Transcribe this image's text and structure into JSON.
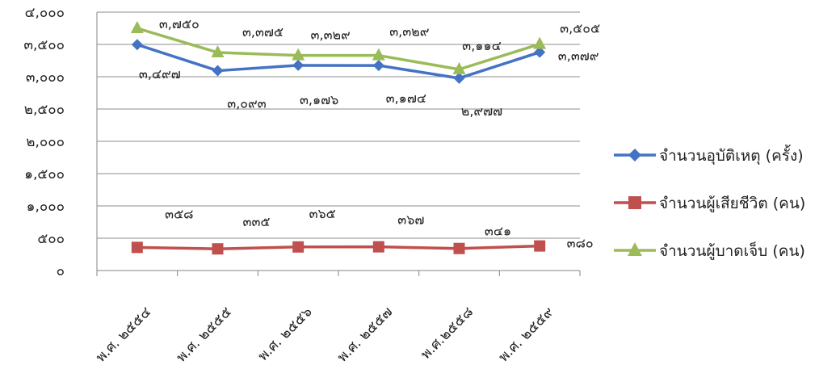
{
  "chart_data": {
    "type": "line",
    "categories": [
      "พ.ศ. ๒๕๕๔",
      "พ.ศ. ๒๕๕๕",
      "พ.ศ. ๒๕๕๖",
      "พ.ศ. ๒๕๕๗",
      "พ.ศ.๒๕๕๘",
      "พ.ศ. ๒๕๕๙"
    ],
    "y_ticks": [
      "๐",
      "๕๐๐",
      "๑,๐๐๐",
      "๑,๕๐๐",
      "๒,๐๐๐",
      "๒,๕๐๐",
      "๓,๐๐๐",
      "๓,๕๐๐",
      "๔,๐๐๐"
    ],
    "ylim": [
      0,
      4000
    ],
    "grid": true,
    "legend_position": "right",
    "series": [
      {
        "name": "จำนวนอุบัติเหตุ (ครั้ง)",
        "color": "#4472C4",
        "marker": "diamond",
        "values": [
          3497,
          3093,
          3176,
          3174,
          2977,
          3379
        ],
        "labels": [
          "๓,๔๙๗",
          "๓,๐๙๓",
          "๓,๑๗๖",
          "๓,๑๗๔",
          "๒,๙๗๗",
          "๓,๓๗๙"
        ]
      },
      {
        "name": "จำนวนผู้เสียชีวิต (คน)",
        "color": "#C0504D",
        "marker": "square",
        "values": [
          358,
          335,
          365,
          367,
          341,
          380
        ],
        "labels": [
          "๓๕๘",
          "๓๓๕",
          "๓๖๕",
          "๓๖๗",
          "๓๔๑",
          "๓๘๐"
        ]
      },
      {
        "name": "จำนวนผู้บาดเจ็บ (คน)",
        "color": "#9BBB59",
        "marker": "triangle",
        "values": [
          3750,
          3375,
          3329,
          3329,
          3114,
          3505
        ],
        "labels": [
          "๓,๗๕๐",
          "๓,๓๗๕",
          "๓,๓๒๙",
          "๓,๓๒๙",
          "๓,๑๑๔",
          "๓,๕๐๕"
        ]
      }
    ]
  }
}
